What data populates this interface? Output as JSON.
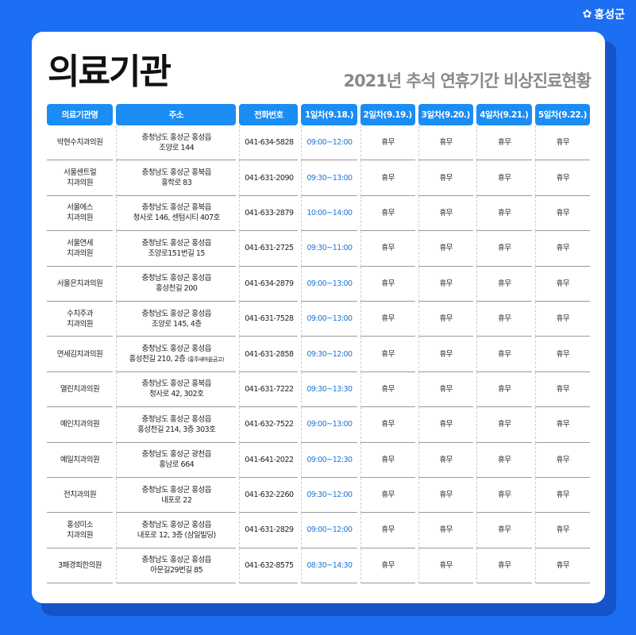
{
  "logo": {
    "text": "홍성군"
  },
  "title": "의료기관",
  "subtitle": "2021년 추석 연휴기간 비상진료현황",
  "columns": [
    "의료기관명",
    "주소",
    "전화번호",
    "1일차(9.18.)",
    "2일차(9.19.)",
    "3일차(9.20.)",
    "4일차(9.21.)",
    "5일차(9.22.)"
  ],
  "colors": {
    "background": "#1c6ef2",
    "header": "#1a8df5",
    "time": "#1e74d8"
  },
  "rows": [
    {
      "name": [
        "박현수치과의원"
      ],
      "addr": [
        "충청남도 홍성군 홍성읍",
        "조양로 144"
      ],
      "phone": "041-634-5828",
      "day1": "09:00~12:00",
      "day2": "휴무",
      "day3": "휴무",
      "day4": "휴무",
      "day5": "휴무"
    },
    {
      "name": [
        "서울센트럴",
        "치과의원"
      ],
      "addr": [
        "충청남도 홍성군 홍북읍",
        "홍학로 83"
      ],
      "phone": "041-631-2090",
      "day1": "09:30~13:00",
      "day2": "휴무",
      "day3": "휴무",
      "day4": "휴무",
      "day5": "휴무"
    },
    {
      "name": [
        "서울에스",
        "치과의원"
      ],
      "addr": [
        "충청남도 홍성군 홍북읍",
        "청사로 146, 센텀시티 407호"
      ],
      "phone": "041-633-2879",
      "day1": "10:00~14:00",
      "day2": "휴무",
      "day3": "휴무",
      "day4": "휴무",
      "day5": "휴무"
    },
    {
      "name": [
        "서울연세",
        "치과의원"
      ],
      "addr": [
        "충청남도 홍성군 홍성읍",
        "조양로151번길 15"
      ],
      "phone": "041-631-2725",
      "day1": "09:30~11:00",
      "day2": "휴무",
      "day3": "휴무",
      "day4": "휴무",
      "day5": "휴무"
    },
    {
      "name": [
        "서울은치과의원"
      ],
      "addr": [
        "충청남도 홍성군 홍성읍",
        "홍성천길 200"
      ],
      "phone": "041-634-2879",
      "day1": "09:00~13:00",
      "day2": "휴무",
      "day3": "휴무",
      "day4": "휴무",
      "day5": "휴무"
    },
    {
      "name": [
        "수치주과",
        "치과의원"
      ],
      "addr": [
        "충청남도 홍성군 홍성읍",
        "조양로 145, 4층"
      ],
      "phone": "041-631-7528",
      "day1": "09:00~13:00",
      "day2": "휴무",
      "day3": "휴무",
      "day4": "휴무",
      "day5": "휴무"
    },
    {
      "name": [
        "연세김치과의원"
      ],
      "addr": [
        "충청남도 홍성군 홍성읍",
        "홍성천길 210, 2층"
      ],
      "addr_note": "(홍주새마을금고)",
      "phone": "041-631-2858",
      "day1": "09:30~12:00",
      "day2": "휴무",
      "day3": "휴무",
      "day4": "휴무",
      "day5": "휴무"
    },
    {
      "name": [
        "열린치과의원"
      ],
      "addr": [
        "충청남도 홍성군 홍북읍",
        "청사로 42, 302호"
      ],
      "phone": "041-631-7222",
      "day1": "09:30~13:30",
      "day2": "휴무",
      "day3": "휴무",
      "day4": "휴무",
      "day5": "휴무"
    },
    {
      "name": [
        "예인치과의원"
      ],
      "addr": [
        "충청남도 홍성군 홍성읍",
        "홍성천길 214, 3층 303호"
      ],
      "phone": "041-632-7522",
      "day1": "09:00~13:00",
      "day2": "휴무",
      "day3": "휴무",
      "day4": "휴무",
      "day5": "휴무"
    },
    {
      "name": [
        "예일치과의원"
      ],
      "addr": [
        "충청남도 홍성군 광천읍",
        "홍남로 664"
      ],
      "phone": "041-641-2022",
      "day1": "09:00~12:30",
      "day2": "휴무",
      "day3": "휴무",
      "day4": "휴무",
      "day5": "휴무"
    },
    {
      "name": [
        "전치과의원"
      ],
      "addr": [
        "충청남도 홍성군 홍성읍",
        "내포로 22"
      ],
      "phone": "041-632-2260",
      "day1": "09:30~12:00",
      "day2": "휴무",
      "day3": "휴무",
      "day4": "휴무",
      "day5": "휴무"
    },
    {
      "name": [
        "홍성미소",
        "치과의원"
      ],
      "addr": [
        "충청남도 홍성군 홍성읍",
        "내포로 12, 3층 (삼일빌딩)"
      ],
      "phone": "041-631-2829",
      "day1": "09:00~12:00",
      "day2": "휴무",
      "day3": "휴무",
      "day4": "휴무",
      "day5": "휴무"
    },
    {
      "name": [
        "3패경희한의원"
      ],
      "addr": [
        "충청남도 홍성군 홍성읍",
        "아문길29번길 85"
      ],
      "phone": "041-632-8575",
      "day1": "08:30~14:30",
      "day2": "휴무",
      "day3": "휴무",
      "day4": "휴무",
      "day5": "휴무"
    }
  ]
}
